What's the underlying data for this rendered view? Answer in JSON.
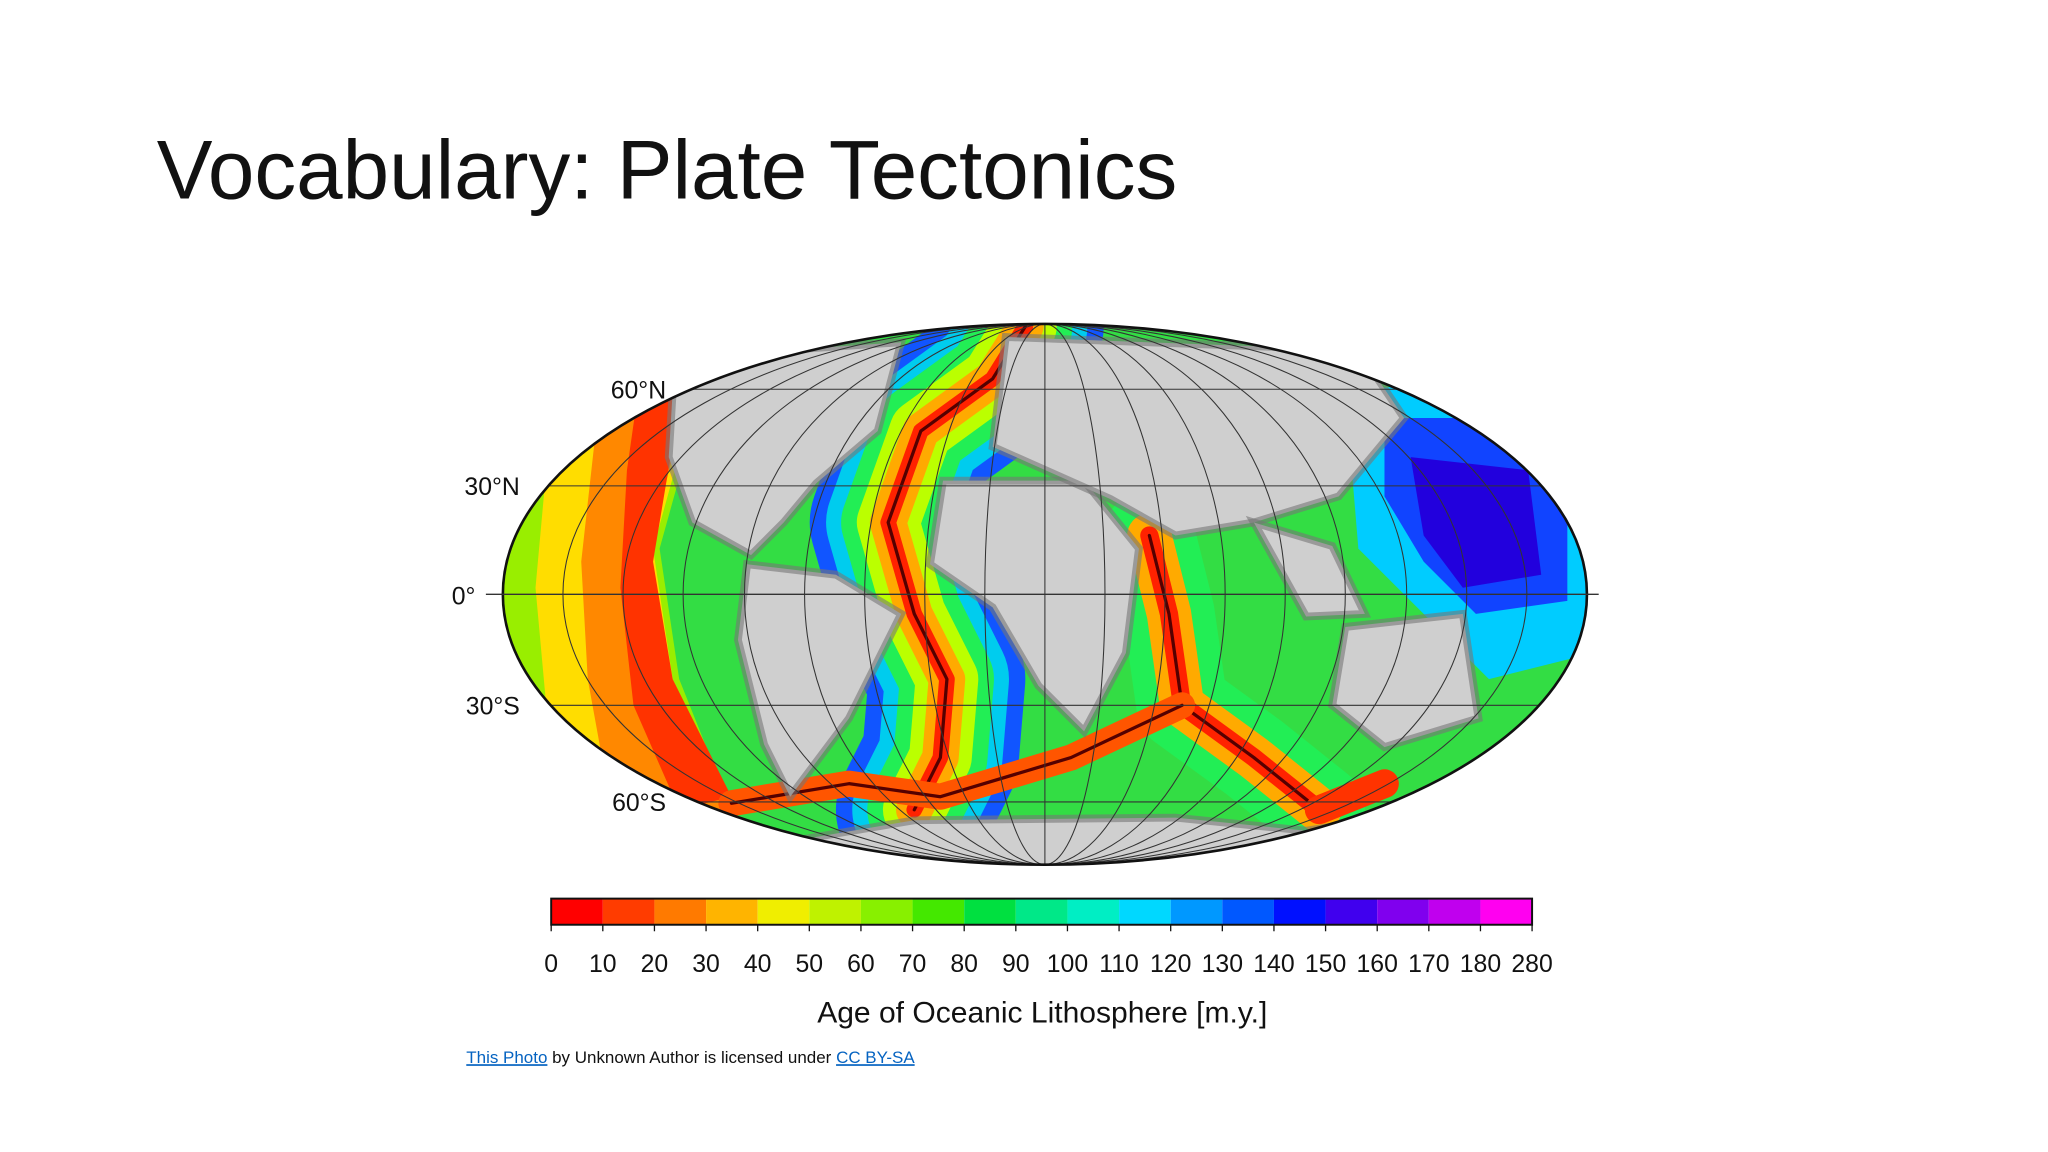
{
  "title": "Vocabulary: Plate Tectonics",
  "map": {
    "latitude_labels": [
      "60°N",
      "30°N",
      "0°",
      "30°S",
      "60°S"
    ],
    "colorbar": {
      "ticks": [
        0,
        10,
        20,
        30,
        40,
        50,
        60,
        70,
        80,
        90,
        100,
        110,
        120,
        130,
        140,
        150,
        160,
        170,
        180,
        280
      ],
      "label": "Age of Oceanic Lithosphere [m.y.]"
    }
  },
  "credit": {
    "link": "This Photo",
    "text": "by Unknown Author is licensed under",
    "license": "CC BY-SA"
  }
}
